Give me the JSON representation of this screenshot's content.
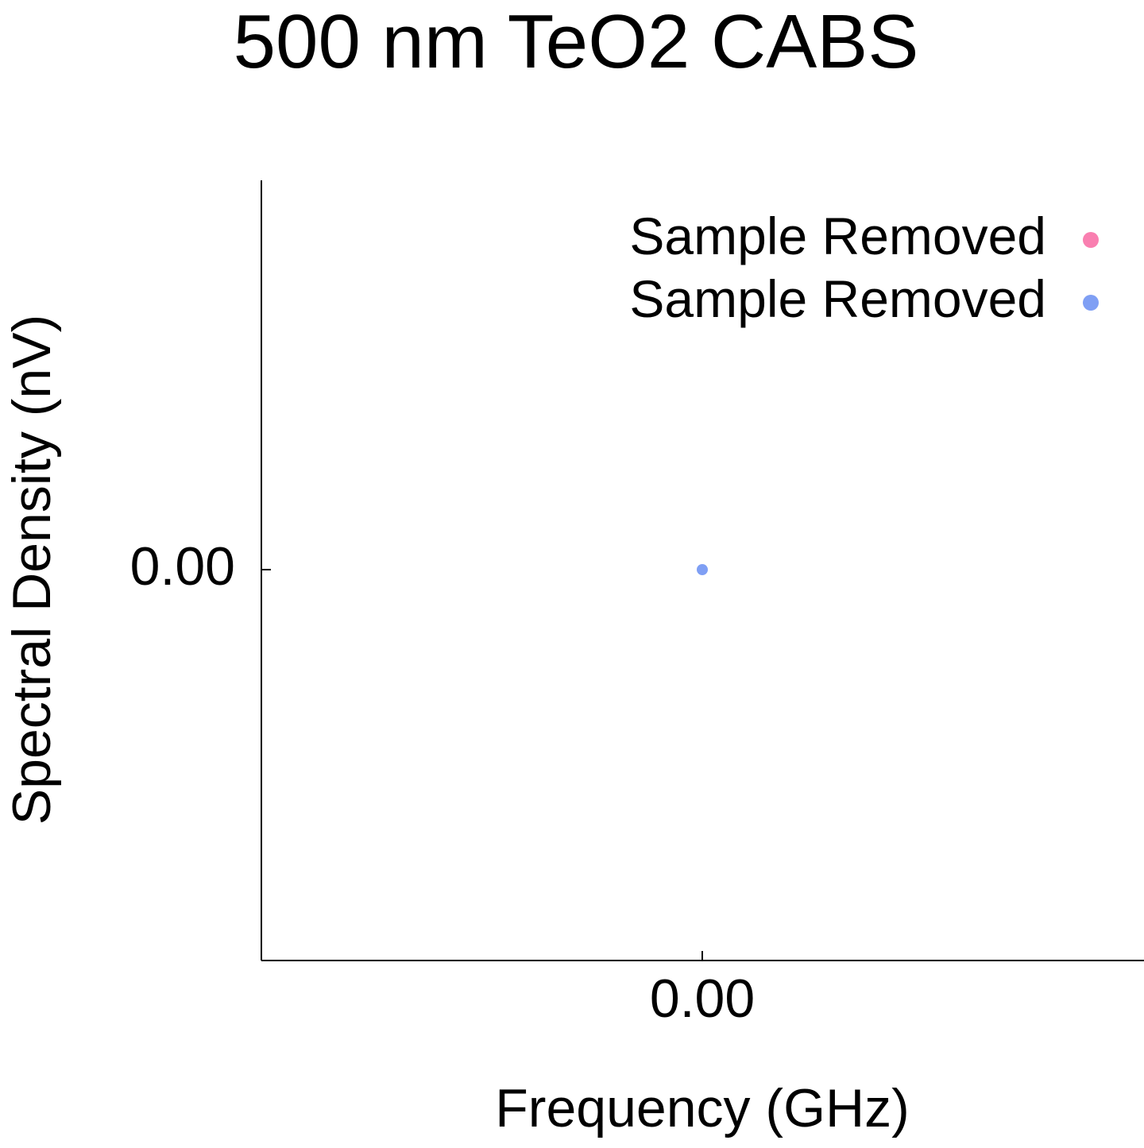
{
  "chart_data": {
    "type": "scatter",
    "title": "500 nm TeO2 CABS",
    "xlabel": "Frequency (GHz)",
    "ylabel": "Spectral Density (nV)",
    "x_ticks": [
      "0.00"
    ],
    "y_ticks": [
      "0.00"
    ],
    "grid": false,
    "legend_position": "top-right",
    "series": [
      {
        "name": "Sample Removed",
        "color": "#f97fb0",
        "points": []
      },
      {
        "name": "Sample Removed",
        "color": "#7f9ff4",
        "points": [
          {
            "x": 0,
            "y": 0
          }
        ]
      }
    ]
  }
}
